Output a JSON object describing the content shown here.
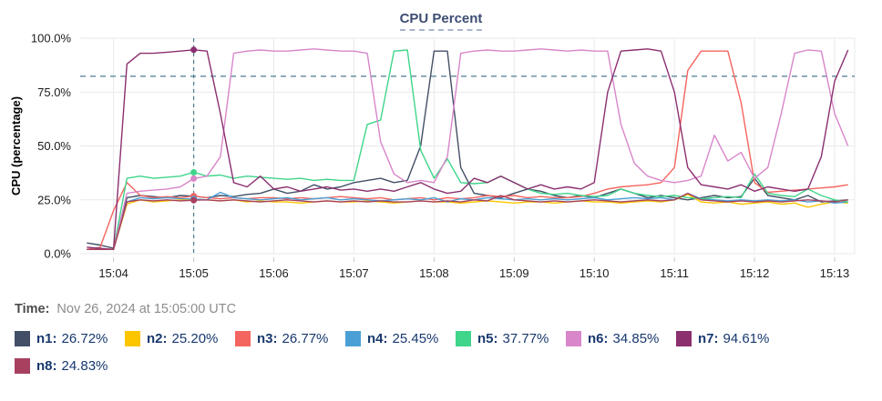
{
  "title": "CPU Percent",
  "time_row": {
    "label": "Time:",
    "value": "Nov 26, 2024 at 15:05:00 UTC"
  },
  "colors": {
    "title_text": "#3d4d73",
    "legend_text": "#17386e",
    "grid": "#e9e9ec",
    "threshold_and_crosshair": "#4c7d92",
    "tick_text": "#1c1c1e"
  },
  "chart_data": {
    "type": "line",
    "title": "CPU Percent",
    "xlabel": "",
    "ylabel": "CPU (percentage)",
    "ylim": [
      0,
      100
    ],
    "grid": true,
    "legend_position": "bottom",
    "y_ticks": [
      {
        "value": 100,
        "label": "100.0%"
      },
      {
        "value": 75,
        "label": "75.0%"
      },
      {
        "value": 50,
        "label": "50.0%"
      },
      {
        "value": 25,
        "label": "25.0%"
      },
      {
        "value": 0,
        "label": "0.0%"
      }
    ],
    "x_ticks": [
      "15:04",
      "15:05",
      "15:06",
      "15:07",
      "15:08",
      "15:09",
      "15:10",
      "15:11",
      "15:12",
      "15:13"
    ],
    "x_range": [
      "15:03:35",
      "15:13:15"
    ],
    "threshold_line": {
      "value": 82.3,
      "style": "dashed"
    },
    "crosshair_time": "15:05:00",
    "x": [
      "15:03:40",
      "15:03:50",
      "15:04:00",
      "15:04:10",
      "15:04:20",
      "15:04:30",
      "15:04:40",
      "15:04:50",
      "15:05:00",
      "15:05:10",
      "15:05:20",
      "15:05:30",
      "15:05:40",
      "15:05:50",
      "15:06:00",
      "15:06:10",
      "15:06:20",
      "15:06:30",
      "15:06:40",
      "15:06:50",
      "15:07:00",
      "15:07:10",
      "15:07:20",
      "15:07:30",
      "15:07:40",
      "15:07:50",
      "15:08:00",
      "15:08:10",
      "15:08:20",
      "15:08:30",
      "15:08:40",
      "15:08:50",
      "15:09:00",
      "15:09:10",
      "15:09:20",
      "15:09:30",
      "15:09:40",
      "15:09:50",
      "15:10:00",
      "15:10:10",
      "15:10:20",
      "15:10:30",
      "15:10:40",
      "15:10:50",
      "15:11:00",
      "15:11:10",
      "15:11:20",
      "15:11:30",
      "15:11:40",
      "15:11:50",
      "15:12:00",
      "15:12:10",
      "15:12:20",
      "15:12:30",
      "15:12:40",
      "15:12:50",
      "15:13:00",
      "15:13:10"
    ],
    "series": [
      {
        "name": "n1",
        "color": "#434f66",
        "legend_value": "26.72%",
        "values": [
          5,
          4,
          2.5,
          26,
          27,
          26.5,
          26,
          27,
          26.72,
          26,
          27,
          26.5,
          27.5,
          28,
          30,
          28,
          29,
          32,
          30,
          31,
          33,
          34,
          35,
          33,
          34,
          50,
          94,
          94,
          40,
          28,
          27,
          26,
          28,
          30,
          29,
          27,
          26,
          27,
          26,
          28,
          30,
          28,
          26,
          27,
          26,
          25,
          26,
          27,
          26,
          26.5,
          35,
          27,
          26,
          25,
          27,
          24,
          24.5,
          25
        ]
      },
      {
        "name": "n2",
        "color": "#fdc500",
        "legend_value": "25.20%",
        "values": [
          2,
          2,
          2,
          23,
          25,
          24,
          24.5,
          25,
          25.2,
          25,
          24.5,
          25,
          24,
          24.5,
          24,
          24,
          23.5,
          24,
          24.5,
          24,
          24,
          24.5,
          24,
          23.5,
          24,
          24.5,
          24,
          24,
          23.5,
          24,
          24.5,
          24,
          23.5,
          24,
          24,
          23.5,
          24,
          24.5,
          24,
          24,
          23.5,
          24,
          24.5,
          24,
          25,
          27.5,
          24,
          23.5,
          24,
          23,
          23.5,
          24,
          23,
          23.5,
          21.5,
          23,
          24,
          23.5
        ]
      },
      {
        "name": "n3",
        "color": "#f4655f",
        "legend_value": "26.77%",
        "values": [
          2,
          3,
          20,
          33,
          27,
          26,
          26.5,
          26,
          26.77,
          26,
          25.5,
          26,
          25.5,
          26,
          26,
          25.5,
          26,
          25.5,
          26,
          26.5,
          26,
          25.5,
          26,
          25,
          25.5,
          26,
          25,
          26,
          25.5,
          26,
          27,
          26.5,
          27,
          26,
          26.5,
          26,
          26,
          26.5,
          28,
          30,
          31,
          31.5,
          32,
          33,
          40,
          85,
          94,
          94,
          94,
          70,
          33,
          28.5,
          29,
          29.5,
          30,
          30.5,
          31,
          32
        ]
      },
      {
        "name": "n4",
        "color": "#4aa0d5",
        "legend_value": "25.45%",
        "values": [
          2,
          2,
          2,
          24,
          26,
          25.5,
          26,
          25.5,
          25.45,
          25,
          28.5,
          26,
          25.5,
          25,
          25.5,
          26,
          25,
          25.5,
          26,
          25,
          25.5,
          25,
          24.5,
          25,
          25.5,
          25,
          26,
          24,
          25.5,
          25,
          26,
          25.5,
          25,
          25.5,
          25,
          25.5,
          25,
          25.5,
          26,
          25,
          25.5,
          26,
          25.5,
          26,
          25,
          28,
          25.5,
          25,
          24.5,
          25,
          24.5,
          25,
          24.5,
          25,
          24,
          24.5,
          23.5,
          24
        ]
      },
      {
        "name": "n5",
        "color": "#3fd58b",
        "legend_value": "37.77%",
        "values": [
          2,
          2,
          2,
          35,
          36,
          35,
          35.5,
          36,
          37.77,
          36,
          36.5,
          35,
          36,
          35.5,
          35,
          34.5,
          35,
          34,
          34.5,
          34,
          34,
          60,
          62,
          94,
          94.5,
          48,
          35,
          44,
          33,
          32.5,
          33,
          36,
          33,
          30,
          28,
          27.5,
          28,
          27,
          26.5,
          27,
          30,
          28,
          27,
          26.5,
          27,
          26,
          25.5,
          26,
          26.5,
          26,
          37,
          28,
          27,
          26.5,
          30,
          27,
          25,
          24
        ]
      },
      {
        "name": "n6",
        "color": "#d986ca",
        "legend_value": "34.85%",
        "values": [
          2,
          2,
          2,
          28,
          29,
          29.5,
          30,
          31,
          34.85,
          36,
          45,
          93,
          94,
          94.5,
          94,
          94,
          94.5,
          95,
          94.5,
          94,
          94,
          93,
          52,
          37,
          33,
          34,
          33,
          45,
          93,
          94,
          94.5,
          94,
          94,
          94.5,
          95,
          94.5,
          94,
          94.5,
          94,
          94,
          60,
          42,
          36,
          34,
          33,
          34,
          36,
          55,
          43,
          47,
          35,
          40,
          65,
          93,
          94.5,
          94,
          65,
          50
        ]
      },
      {
        "name": "n7",
        "color": "#8b2f6f",
        "legend_value": "94.61%",
        "values": [
          3,
          2.5,
          2,
          88,
          93,
          93,
          93.5,
          94,
          94.61,
          94,
          65,
          33,
          31,
          36,
          30,
          31,
          29,
          30,
          31,
          29.5,
          30,
          29,
          30,
          29,
          31,
          33,
          30,
          28,
          29,
          35,
          33,
          36,
          33,
          30,
          32,
          30,
          31,
          30,
          33,
          75,
          94,
          94.5,
          95,
          94,
          75,
          40,
          32,
          31,
          30,
          32,
          29,
          31,
          30,
          29,
          30,
          45,
          80,
          94.5
        ]
      },
      {
        "name": "n8",
        "color": "#a7415f",
        "legend_value": "24.83%",
        "values": [
          2,
          2,
          2,
          24,
          25,
          24.5,
          25,
          24.5,
          24.83,
          25,
          24.5,
          25,
          24.5,
          24,
          24.5,
          25,
          24.5,
          24,
          24.5,
          24,
          24.5,
          24,
          24.5,
          24,
          24,
          24.5,
          24,
          24.5,
          24,
          25,
          24.5,
          27,
          25,
          24.5,
          24,
          24.5,
          24,
          24.5,
          25,
          24.5,
          24,
          24.5,
          25,
          24.5,
          25,
          28,
          25,
          24.5,
          24,
          24.5,
          24,
          24.5,
          24,
          24.5,
          25,
          24.5,
          24,
          25
        ]
      }
    ]
  }
}
